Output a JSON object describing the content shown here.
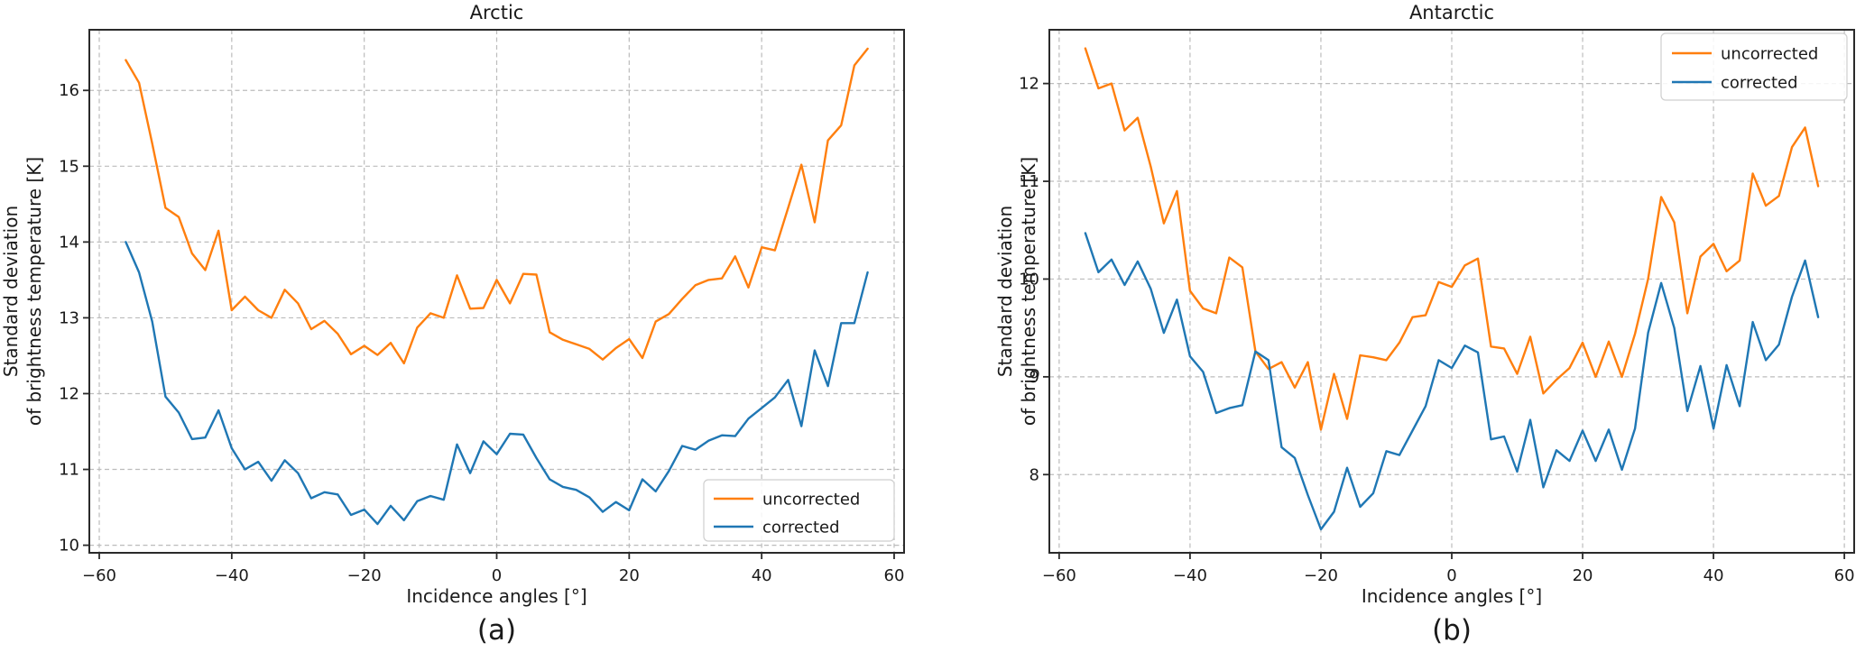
{
  "figure": {
    "background": "#ffffff",
    "accent_colors": {
      "uncorrected": "#ff7f0e",
      "corrected": "#1f77b4"
    }
  },
  "chart_data": [
    {
      "type": "line",
      "title": "Arctic",
      "caption": "(a)",
      "xlabel": "Incidence angles [°]",
      "ylabel": "Standard deviation\nof brightness temperature [K]",
      "xlim": [
        -61.5,
        61.5
      ],
      "ylim": [
        9.9,
        16.8
      ],
      "xtick_values": [
        -60,
        -40,
        -20,
        0,
        20,
        40,
        60
      ],
      "xtick_labels": [
        "−60",
        "−40",
        "−20",
        "0",
        "20",
        "40",
        "60"
      ],
      "ytick_values": [
        10,
        11,
        12,
        13,
        14,
        15,
        16
      ],
      "ytick_labels": [
        "10",
        "11",
        "12",
        "13",
        "14",
        "15",
        "16"
      ],
      "grid": true,
      "legend_loc": "lower right",
      "x": [
        -56,
        -54,
        -52,
        -50,
        -48,
        -46,
        -44,
        -42,
        -40,
        -38,
        -36,
        -34,
        -32,
        -30,
        -28,
        -26,
        -24,
        -22,
        -20,
        -18,
        -16,
        -14,
        -12,
        -10,
        -8,
        -6,
        -4,
        -2,
        0,
        2,
        4,
        6,
        8,
        10,
        12,
        14,
        16,
        18,
        20,
        22,
        24,
        26,
        28,
        30,
        32,
        34,
        36,
        38,
        40,
        42,
        44,
        46,
        48,
        50,
        52,
        54,
        56
      ],
      "series": [
        {
          "name": "uncorrected",
          "color": "#ff7f0e",
          "values": [
            16.4,
            16.1,
            15.3,
            14.45,
            14.33,
            13.85,
            13.63,
            14.15,
            13.1,
            13.28,
            13.1,
            13.0,
            13.37,
            13.19,
            12.85,
            12.96,
            12.79,
            12.52,
            12.63,
            12.51,
            12.67,
            12.4,
            12.87,
            13.06,
            13.0,
            13.56,
            13.12,
            13.13,
            13.5,
            13.19,
            13.58,
            13.57,
            12.81,
            12.71,
            12.65,
            12.59,
            12.45,
            12.6,
            12.72,
            12.47,
            12.95,
            13.05,
            13.25,
            13.43,
            13.5,
            13.52,
            13.81,
            13.4,
            13.93,
            13.89,
            14.45,
            15.02,
            14.26,
            15.34,
            15.54,
            16.33,
            16.55
          ]
        },
        {
          "name": "corrected",
          "color": "#1f77b4",
          "values": [
            14.0,
            13.6,
            12.95,
            11.96,
            11.75,
            11.4,
            11.42,
            11.78,
            11.28,
            11.0,
            11.1,
            10.85,
            11.12,
            10.95,
            10.62,
            10.7,
            10.67,
            10.4,
            10.47,
            10.28,
            10.52,
            10.33,
            10.58,
            10.65,
            10.6,
            11.33,
            10.95,
            11.37,
            11.2,
            11.47,
            11.46,
            11.15,
            10.87,
            10.77,
            10.73,
            10.63,
            10.44,
            10.57,
            10.46,
            10.87,
            10.71,
            10.98,
            11.31,
            11.26,
            11.38,
            11.45,
            11.44,
            11.67,
            11.81,
            11.95,
            12.18,
            11.57,
            12.57,
            12.1,
            12.93,
            12.93,
            13.6
          ]
        }
      ]
    },
    {
      "type": "line",
      "title": "Antarctic",
      "caption": "(b)",
      "xlabel": "Incidence angles [°]",
      "ylabel": "Standard deviation\nof brightness temperature [K]",
      "xlim": [
        -61.5,
        61.5
      ],
      "ylim": [
        7.2,
        12.55
      ],
      "xtick_values": [
        -60,
        -40,
        -20,
        0,
        20,
        40,
        60
      ],
      "xtick_labels": [
        "−60",
        "−40",
        "−20",
        "0",
        "20",
        "40",
        "60"
      ],
      "ytick_values": [
        8,
        9,
        10,
        11,
        12
      ],
      "ytick_labels": [
        "8",
        "9",
        "10",
        "11",
        "12"
      ],
      "grid": true,
      "legend_loc": "upper right",
      "x": [
        -56,
        -54,
        -52,
        -50,
        -48,
        -46,
        -44,
        -42,
        -40,
        -38,
        -36,
        -34,
        -32,
        -30,
        -28,
        -26,
        -24,
        -22,
        -20,
        -18,
        -16,
        -14,
        -12,
        -10,
        -8,
        -6,
        -4,
        -2,
        0,
        2,
        4,
        6,
        8,
        10,
        12,
        14,
        16,
        18,
        20,
        22,
        24,
        26,
        28,
        30,
        32,
        34,
        36,
        38,
        40,
        42,
        44,
        46,
        48,
        50,
        52,
        54,
        56
      ],
      "series": [
        {
          "name": "uncorrected",
          "color": "#ff7f0e",
          "values": [
            12.36,
            11.95,
            12.0,
            11.52,
            11.65,
            11.15,
            10.57,
            10.9,
            9.88,
            9.7,
            9.65,
            10.22,
            10.12,
            9.26,
            9.08,
            9.15,
            8.89,
            9.15,
            8.46,
            9.03,
            8.57,
            9.22,
            9.2,
            9.17,
            9.35,
            9.61,
            9.63,
            9.97,
            9.92,
            10.14,
            10.21,
            9.31,
            9.29,
            9.03,
            9.41,
            8.83,
            8.97,
            9.09,
            9.35,
            9.0,
            9.36,
            9.0,
            9.44,
            10.0,
            10.84,
            10.58,
            9.65,
            10.23,
            10.36,
            10.08,
            10.19,
            11.08,
            10.75,
            10.85,
            11.35,
            11.55,
            10.95
          ]
        },
        {
          "name": "corrected",
          "color": "#1f77b4",
          "values": [
            10.47,
            10.07,
            10.2,
            9.94,
            10.18,
            9.9,
            9.45,
            9.79,
            9.21,
            9.05,
            8.63,
            8.68,
            8.71,
            9.26,
            9.17,
            8.28,
            8.17,
            7.79,
            7.44,
            7.62,
            8.07,
            7.67,
            7.81,
            8.24,
            8.2,
            8.45,
            8.7,
            9.17,
            9.09,
            9.32,
            9.25,
            8.36,
            8.39,
            8.03,
            8.56,
            7.87,
            8.25,
            8.14,
            8.45,
            8.14,
            8.46,
            8.05,
            8.47,
            9.45,
            9.96,
            9.5,
            8.65,
            9.11,
            8.47,
            9.12,
            8.7,
            9.56,
            9.17,
            9.33,
            9.82,
            10.19,
            9.61
          ]
        }
      ]
    }
  ]
}
